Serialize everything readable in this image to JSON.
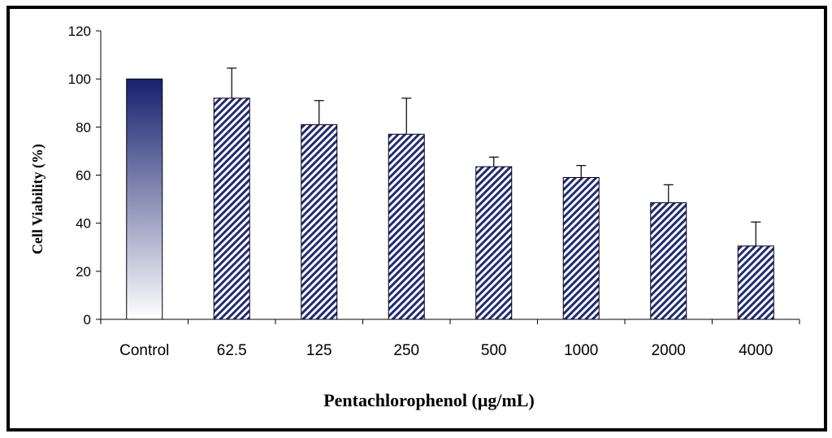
{
  "chart_data": {
    "type": "bar",
    "title": "",
    "xlabel": "Pentachlorophenol (μg/mL)",
    "ylabel": "Cell Viability (%)",
    "ylim": [
      0,
      120
    ],
    "yticks": [
      0,
      20,
      40,
      60,
      80,
      100,
      120
    ],
    "categories": [
      "Control",
      "62.5",
      "125",
      "250",
      "500",
      "1000",
      "2000",
      "4000"
    ],
    "series": [
      {
        "name": "Cell Viability",
        "values": [
          100,
          92,
          81,
          77,
          63.5,
          59,
          48.5,
          30.5
        ],
        "error_upper": [
          0,
          12.5,
          10,
          15,
          4,
          5,
          7.5,
          10
        ]
      }
    ],
    "grid": false,
    "legend": "none",
    "colors": {
      "bar_stripe": "#1f2a7a",
      "control_top": "#16206e",
      "control_bottom": "#ffffff",
      "axis": "#000000"
    }
  }
}
